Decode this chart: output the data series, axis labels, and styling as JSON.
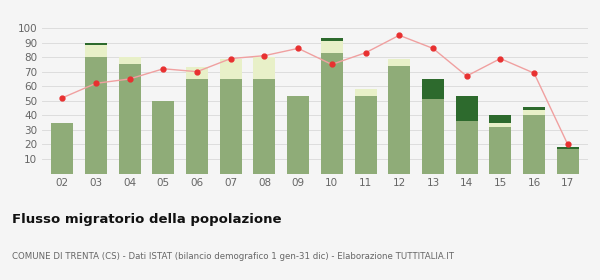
{
  "categories": [
    "02",
    "03",
    "04",
    "05",
    "06",
    "07",
    "08",
    "09",
    "10",
    "11",
    "12",
    "13",
    "14",
    "15",
    "16",
    "17"
  ],
  "iscritti_altri_comuni": [
    35,
    80,
    75,
    50,
    65,
    65,
    65,
    53,
    83,
    53,
    74,
    51,
    36,
    32,
    40,
    17
  ],
  "iscritti_estero": [
    0,
    8,
    5,
    0,
    8,
    14,
    15,
    0,
    8,
    5,
    5,
    0,
    0,
    3,
    4,
    0
  ],
  "iscritti_altri": [
    0,
    2,
    0,
    0,
    0,
    0,
    0,
    0,
    2,
    0,
    0,
    14,
    17,
    5,
    2,
    1
  ],
  "cancellati": [
    52,
    62,
    65,
    72,
    70,
    79,
    81,
    86,
    75,
    83,
    95,
    86,
    67,
    79,
    69,
    20
  ],
  "color_altri_comuni": "#8fac78",
  "color_estero": "#e8f0c8",
  "color_altri": "#2d6a2d",
  "color_cancellati": "#e83030",
  "color_cancellati_line": "#f0a0a0",
  "ylim": [
    0,
    100
  ],
  "yticks": [
    0,
    10,
    20,
    30,
    40,
    50,
    60,
    70,
    80,
    90,
    100
  ],
  "title": "Flusso migratorio della popolazione",
  "subtitle": "COMUNE DI TRENTA (CS) - Dati ISTAT (bilancio demografico 1 gen-31 dic) - Elaborazione TUTTITALIA.IT",
  "background_color": "#f5f5f5",
  "grid_color": "#dddddd"
}
